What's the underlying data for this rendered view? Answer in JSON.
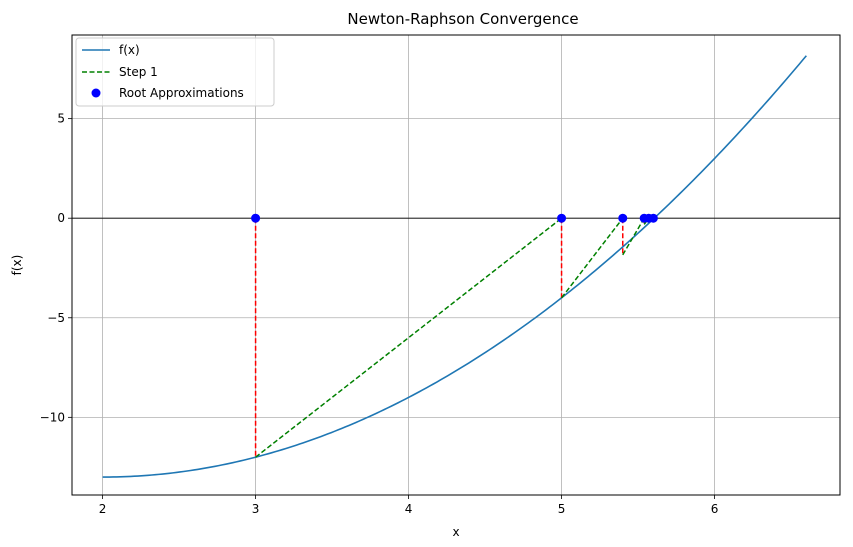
{
  "chart_data": {
    "type": "line",
    "title": "Newton-Raphson Convergence",
    "xlabel": "x",
    "ylabel": "f(x)",
    "xlim": [
      1.8,
      6.82
    ],
    "ylim": [
      -13.9,
      9.2
    ],
    "xticks": [
      2,
      3,
      4,
      5,
      6
    ],
    "yticks": [
      -10,
      -5,
      0,
      5
    ],
    "xtick_labels": [
      "2",
      "3",
      "4",
      "5",
      "6"
    ],
    "ytick_labels": [
      "−10",
      "−5",
      "0",
      "5"
    ],
    "grid": true,
    "legend_position": "top-left",
    "legend": {
      "curve": "f(x)",
      "steps": "Step 1",
      "roots": "Root Approximations"
    },
    "curve": {
      "name": "f(x)",
      "x_start": 2,
      "x_end": 6.6,
      "color": "#1f77b4"
    },
    "iterations": [
      {
        "x": 3.0,
        "fx": -12.0
      },
      {
        "x": 5.0,
        "fx": -4.0
      },
      {
        "x": 5.4,
        "fx": -1.84
      },
      {
        "x": 5.54,
        "fx": -0.31
      },
      {
        "x": 5.57,
        "fx": -0.08
      },
      {
        "x": 5.6,
        "fx": 0.0
      }
    ],
    "root_points": [
      {
        "x": 3.0,
        "y": 0
      },
      {
        "x": 5.0,
        "y": 0
      },
      {
        "x": 5.4,
        "y": 0
      },
      {
        "x": 5.54,
        "y": 0
      },
      {
        "x": 5.57,
        "y": 0
      },
      {
        "x": 5.6,
        "y": 0
      }
    ],
    "colors": {
      "curve": "#1f77b4",
      "tangent": "#008000",
      "vertical": "#ff0000",
      "root": "#0000ff",
      "zero_line": "#000000",
      "grid": "#b0b0b0"
    }
  }
}
